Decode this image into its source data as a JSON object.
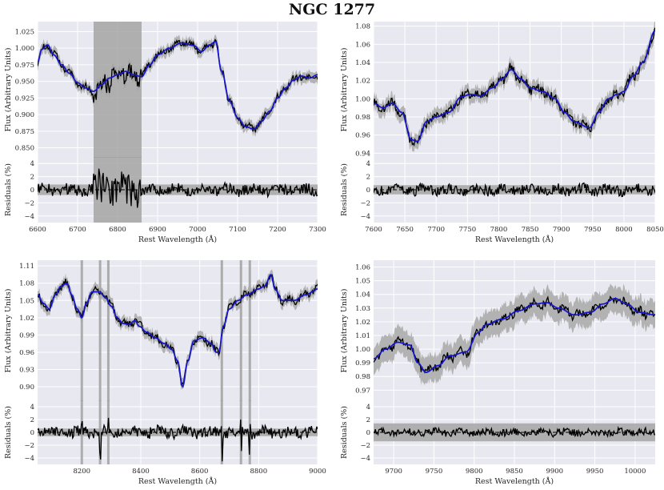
{
  "figure": {
    "title": "NGC 1277",
    "colors": {
      "bg": "#e8e8f1",
      "grid": "#ffffff",
      "data": "#000000",
      "model": "#1515d0",
      "band": "#a8a8a8",
      "mask": "#a0a0a0"
    }
  },
  "chart_data": [
    {
      "type": "line",
      "id": "p1",
      "xlabel": "Rest Wavelength (Å)",
      "ylabel_top": "Flux (Arbitrary Units)",
      "ylabel_bottom": "Residuals (%)",
      "xlim": [
        6600,
        7300
      ],
      "ylim_top": [
        0.835,
        1.04
      ],
      "ylim_bottom": [
        -5,
        5
      ],
      "xticks": [
        6600,
        6700,
        6800,
        6900,
        7000,
        7100,
        7200,
        7300
      ],
      "xtick_labels": [
        "6600",
        "6700",
        "6800",
        "6900",
        "7000",
        "7100",
        "7200",
        "7300"
      ],
      "yticks_top": [
        0.85,
        0.875,
        0.9,
        0.925,
        0.95,
        0.975,
        1.0,
        1.025
      ],
      "ytick_labels_top": [
        "0.850",
        "0.875",
        "0.900",
        "0.925",
        "0.950",
        "0.975",
        "1.000",
        "1.025"
      ],
      "yticks_bottom": [
        -4,
        -2,
        0,
        2,
        4
      ],
      "ytick_labels_bottom": [
        "−4",
        "−2",
        "0",
        "2",
        "4"
      ],
      "masked_region": [
        6740,
        6860
      ],
      "mask_lines": [],
      "residual_band": 0.8,
      "noise": 0.005,
      "resid_noise": 0.55,
      "model_knots": [
        [
          6600,
          0.978
        ],
        [
          6610,
          0.998
        ],
        [
          6625,
          1.005
        ],
        [
          6640,
          0.99
        ],
        [
          6660,
          0.975
        ],
        [
          6680,
          0.962
        ],
        [
          6700,
          0.948
        ],
        [
          6720,
          0.94
        ],
        [
          6740,
          0.935
        ],
        [
          6760,
          0.945
        ],
        [
          6780,
          0.955
        ],
        [
          6800,
          0.96
        ],
        [
          6820,
          0.965
        ],
        [
          6840,
          0.96
        ],
        [
          6860,
          0.957
        ],
        [
          6880,
          0.975
        ],
        [
          6900,
          0.99
        ],
        [
          6930,
          1.0
        ],
        [
          6960,
          1.008
        ],
        [
          6990,
          1.004
        ],
        [
          7010,
          0.995
        ],
        [
          7030,
          1.005
        ],
        [
          7045,
          1.01
        ],
        [
          7060,
          0.965
        ],
        [
          7080,
          0.92
        ],
        [
          7100,
          0.895
        ],
        [
          7120,
          0.882
        ],
        [
          7140,
          0.878
        ],
        [
          7160,
          0.89
        ],
        [
          7180,
          0.905
        ],
        [
          7200,
          0.925
        ],
        [
          7220,
          0.94
        ],
        [
          7240,
          0.952
        ],
        [
          7260,
          0.958
        ],
        [
          7280,
          0.955
        ],
        [
          7300,
          0.96
        ]
      ]
    },
    {
      "type": "line",
      "id": "p2",
      "xlabel": "Rest Wavelength (Å)",
      "ylabel_top": "Flux (Arbitrary Units)",
      "ylabel_bottom": "Residuals (%)",
      "xlim": [
        7600,
        8050
      ],
      "ylim_top": [
        0.935,
        1.085
      ],
      "ylim_bottom": [
        -5,
        5
      ],
      "xticks": [
        7600,
        7650,
        7700,
        7750,
        7800,
        7850,
        7900,
        7950,
        8000,
        8050
      ],
      "xtick_labels": [
        "7600",
        "7650",
        "7700",
        "7750",
        "7800",
        "7850",
        "7900",
        "7950",
        "8000",
        "8050"
      ],
      "yticks_top": [
        0.94,
        0.96,
        0.98,
        1.0,
        1.02,
        1.04,
        1.06,
        1.08
      ],
      "ytick_labels_top": [
        "0.94",
        "0.96",
        "0.98",
        "1.00",
        "1.02",
        "1.04",
        "1.06",
        "1.08"
      ],
      "yticks_bottom": [
        -4,
        -2,
        0,
        2,
        4
      ],
      "ytick_labels_bottom": [
        "−4",
        "−2",
        "0",
        "2",
        "4"
      ],
      "masked_region": null,
      "mask_lines": [],
      "residual_band": 0.7,
      "noise": 0.005,
      "resid_noise": 0.5,
      "model_knots": [
        [
          7600,
          0.995
        ],
        [
          7615,
          0.99
        ],
        [
          7630,
          0.995
        ],
        [
          7645,
          0.985
        ],
        [
          7660,
          0.955
        ],
        [
          7670,
          0.953
        ],
        [
          7685,
          0.975
        ],
        [
          7700,
          0.98
        ],
        [
          7720,
          0.985
        ],
        [
          7740,
          1.002
        ],
        [
          7755,
          1.005
        ],
        [
          7770,
          1.003
        ],
        [
          7790,
          1.012
        ],
        [
          7805,
          1.022
        ],
        [
          7820,
          1.032
        ],
        [
          7835,
          1.022
        ],
        [
          7850,
          1.012
        ],
        [
          7870,
          1.008
        ],
        [
          7890,
          1.0
        ],
        [
          7905,
          0.985
        ],
        [
          7920,
          0.975
        ],
        [
          7945,
          0.968
        ],
        [
          7960,
          0.985
        ],
        [
          7975,
          1.0
        ],
        [
          7990,
          1.005
        ],
        [
          8000,
          1.008
        ],
        [
          8015,
          1.025
        ],
        [
          8030,
          1.04
        ],
        [
          8050,
          1.075
        ]
      ]
    },
    {
      "type": "line",
      "id": "p3",
      "xlabel": "Rest Wavelength (Å)",
      "ylabel_top": "Flux (Arbitrary Units)",
      "ylabel_bottom": "Residuals (%)",
      "xlim": [
        8050,
        9000
      ],
      "ylim_top": [
        0.875,
        1.12
      ],
      "ylim_bottom": [
        -5,
        5
      ],
      "xticks": [
        8200,
        8400,
        8600,
        8800,
        9000
      ],
      "xtick_labels": [
        "8200",
        "8400",
        "8600",
        "8800",
        "9000"
      ],
      "yticks_top": [
        0.9,
        0.93,
        0.96,
        0.99,
        1.02,
        1.05,
        1.08,
        1.11
      ],
      "ytick_labels_top": [
        "0.90",
        "0.93",
        "0.96",
        "0.99",
        "1.02",
        "1.05",
        "1.08",
        "1.11"
      ],
      "yticks_bottom": [
        -4,
        -2,
        0,
        2,
        4
      ],
      "ytick_labels_bottom": [
        "−4",
        "−2",
        "0",
        "2",
        "4"
      ],
      "masked_region": null,
      "mask_lines": [
        8200,
        8262,
        8290,
        8675,
        8740,
        8770
      ],
      "residual_band": 0.6,
      "noise": 0.006,
      "resid_noise": 0.55,
      "model_knots": [
        [
          8050,
          1.06
        ],
        [
          8070,
          1.045
        ],
        [
          8090,
          1.035
        ],
        [
          8110,
          1.06
        ],
        [
          8130,
          1.075
        ],
        [
          8150,
          1.08
        ],
        [
          8165,
          1.06
        ],
        [
          8185,
          1.035
        ],
        [
          8200,
          1.02
        ],
        [
          8215,
          1.045
        ],
        [
          8235,
          1.065
        ],
        [
          8260,
          1.065
        ],
        [
          8280,
          1.055
        ],
        [
          8300,
          1.04
        ],
        [
          8320,
          1.02
        ],
        [
          8340,
          1.01
        ],
        [
          8360,
          1.008
        ],
        [
          8380,
          1.015
        ],
        [
          8395,
          1.005
        ],
        [
          8420,
          0.995
        ],
        [
          8450,
          0.985
        ],
        [
          8480,
          0.975
        ],
        [
          8505,
          0.965
        ],
        [
          8525,
          0.945
        ],
        [
          8542,
          0.9
        ],
        [
          8560,
          0.945
        ],
        [
          8580,
          0.98
        ],
        [
          8610,
          0.985
        ],
        [
          8640,
          0.975
        ],
        [
          8655,
          0.96
        ],
        [
          8665,
          0.96
        ],
        [
          8680,
          1.005
        ],
        [
          8700,
          1.035
        ],
        [
          8730,
          1.05
        ],
        [
          8760,
          1.06
        ],
        [
          8800,
          1.07
        ],
        [
          8820,
          1.075
        ],
        [
          8842,
          1.095
        ],
        [
          8855,
          1.07
        ],
        [
          8880,
          1.05
        ],
        [
          8920,
          1.05
        ],
        [
          8960,
          1.06
        ],
        [
          9000,
          1.07
        ]
      ]
    },
    {
      "type": "line",
      "id": "p4",
      "xlabel": "Rest Wavelength (Å)",
      "ylabel_top": "Flux (Arbitrary Units)",
      "ylabel_bottom": "Residuals (%)",
      "xlim": [
        9675,
        10025
      ],
      "ylim_top": [
        0.962,
        1.065
      ],
      "ylim_bottom": [
        -5,
        5
      ],
      "xticks": [
        9700,
        9750,
        9800,
        9850,
        9900,
        9950,
        10000
      ],
      "xtick_labels": [
        "9700",
        "9750",
        "9800",
        "9850",
        "9900",
        "9950",
        "10000"
      ],
      "yticks_top": [
        0.97,
        0.98,
        0.99,
        1.0,
        1.01,
        1.02,
        1.03,
        1.04,
        1.05,
        1.06
      ],
      "ytick_labels_top": [
        "0.97",
        "0.98",
        "0.99",
        "1.00",
        "1.01",
        "1.02",
        "1.03",
        "1.04",
        "1.05",
        "1.06"
      ],
      "yticks_bottom": [
        -4,
        -2,
        0,
        2,
        4
      ],
      "ytick_labels_bottom": [
        "−4",
        "−2",
        "0",
        "2",
        "4"
      ],
      "masked_region": null,
      "mask_lines": [],
      "residual_band": 1.4,
      "noise": 0.003,
      "resid_noise": 0.35,
      "model_knots": [
        [
          9675,
          0.993
        ],
        [
          9690,
          1.0
        ],
        [
          9705,
          1.005
        ],
        [
          9720,
          1.003
        ],
        [
          9730,
          0.99
        ],
        [
          9740,
          0.983
        ],
        [
          9755,
          0.988
        ],
        [
          9770,
          0.995
        ],
        [
          9790,
          0.998
        ],
        [
          9805,
          1.012
        ],
        [
          9815,
          1.018
        ],
        [
          9835,
          1.022
        ],
        [
          9855,
          1.028
        ],
        [
          9875,
          1.033
        ],
        [
          9890,
          1.034
        ],
        [
          9905,
          1.03
        ],
        [
          9925,
          1.025
        ],
        [
          9945,
          1.027
        ],
        [
          9960,
          1.033
        ],
        [
          9975,
          1.037
        ],
        [
          9990,
          1.033
        ],
        [
          10005,
          1.027
        ],
        [
          10025,
          1.025
        ]
      ]
    }
  ]
}
